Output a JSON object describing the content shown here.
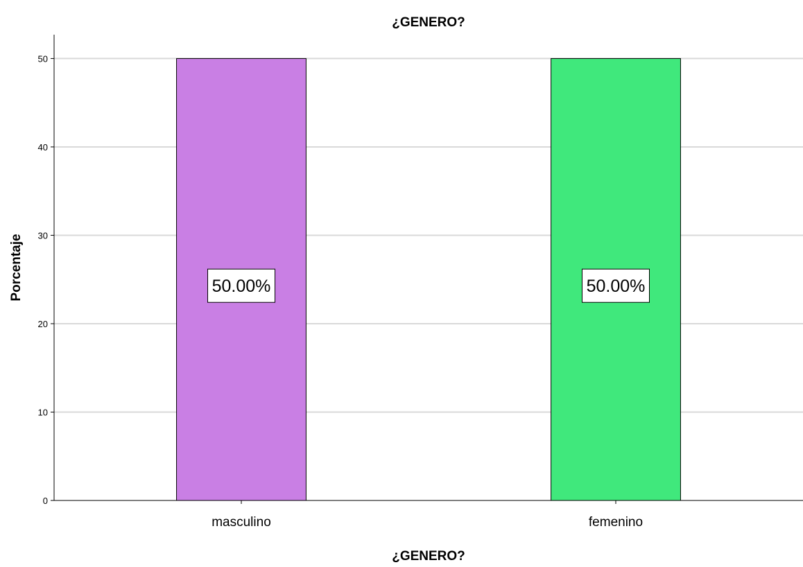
{
  "chart_data": {
    "type": "bar",
    "title": "¿GENERO?",
    "xlabel": "¿GENERO?",
    "ylabel": "Porcentaje",
    "categories": [
      "masculino",
      "femenino"
    ],
    "values": [
      50,
      50
    ],
    "data_labels": [
      "50.00%",
      "50.00%"
    ],
    "colors": [
      "#c97fe4",
      "#40e87c"
    ],
    "ylim": [
      0,
      52.7
    ],
    "yticks": [
      0,
      10,
      20,
      30,
      40,
      50
    ],
    "grid": true,
    "legend": "none"
  }
}
